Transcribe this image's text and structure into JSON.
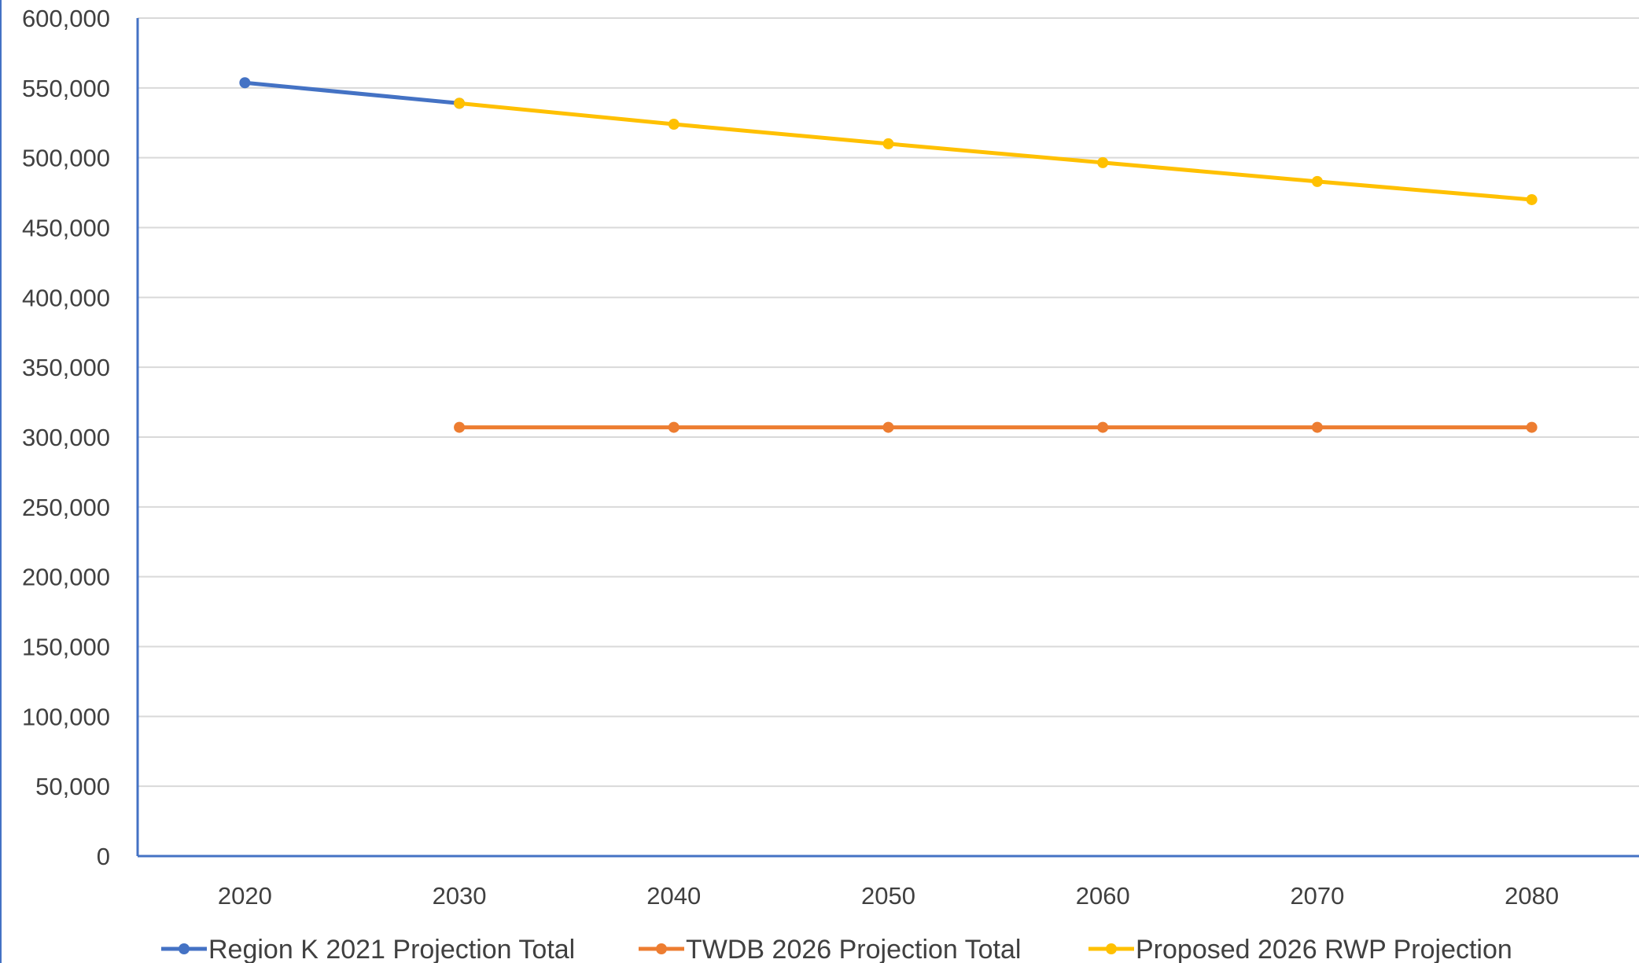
{
  "chart_data": {
    "type": "line",
    "title": "",
    "xlabel": "",
    "ylabel": "",
    "categories": [
      "2020",
      "2030",
      "2040",
      "2050",
      "2060",
      "2070",
      "2080"
    ],
    "ylim": [
      0,
      600000
    ],
    "yticks": [
      0,
      50000,
      100000,
      150000,
      200000,
      250000,
      300000,
      350000,
      400000,
      450000,
      500000,
      550000,
      600000
    ],
    "ytick_labels": [
      "0",
      "50,000",
      "100,000",
      "150,000",
      "200,000",
      "250,000",
      "300,000",
      "350,000",
      "400,000",
      "450,000",
      "500,000",
      "550,000",
      "600,000"
    ],
    "grid": true,
    "legend_position": "bottom",
    "series": [
      {
        "name": "Region K 2021 Projection Total",
        "color": "#4472C4",
        "values": [
          553700,
          539000,
          null,
          null,
          null,
          null,
          null
        ]
      },
      {
        "name": "TWDB 2026 Projection Total",
        "color": "#ED7D31",
        "values": [
          null,
          307000,
          307000,
          307000,
          307000,
          307000,
          307000
        ]
      },
      {
        "name": "Proposed 2026 RWP Projection",
        "color": "#FFC000",
        "values": [
          null,
          539000,
          524000,
          510000,
          496500,
          483000,
          470000
        ]
      }
    ]
  }
}
